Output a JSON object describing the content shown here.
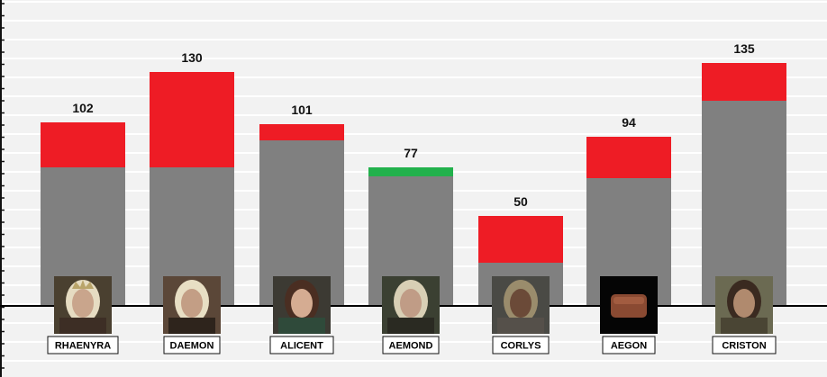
{
  "chart_data": {
    "type": "bar",
    "stacked": true,
    "categories": [
      "RHAENYRA",
      "DAEMON",
      "ALICENT",
      "AEMOND",
      "CORLYS",
      "AEGON",
      "CRISTON"
    ],
    "values": [
      102,
      130,
      101,
      77,
      50,
      94,
      135
    ],
    "series": [
      {
        "values": [
          77,
          77,
          92,
          72,
          24,
          71,
          114
        ],
        "color": "#808080"
      },
      {
        "values": [
          25,
          53,
          9,
          0,
          26,
          23,
          21
        ],
        "color": "#ee1c25"
      },
      {
        "values": [
          0,
          0,
          0,
          5,
          0,
          0,
          0
        ],
        "color": "#22b14c"
      }
    ],
    "ylim": [
      -35,
      152
    ],
    "grid": true,
    "legend": "none",
    "icons": [
      "rhaenyra-portrait-icon",
      "daemon-portrait-icon",
      "alicent-portrait-icon",
      "aemond-portrait-icon",
      "corlys-portrait-icon",
      "aegon-bread-icon",
      "criston-portrait-icon"
    ]
  }
}
